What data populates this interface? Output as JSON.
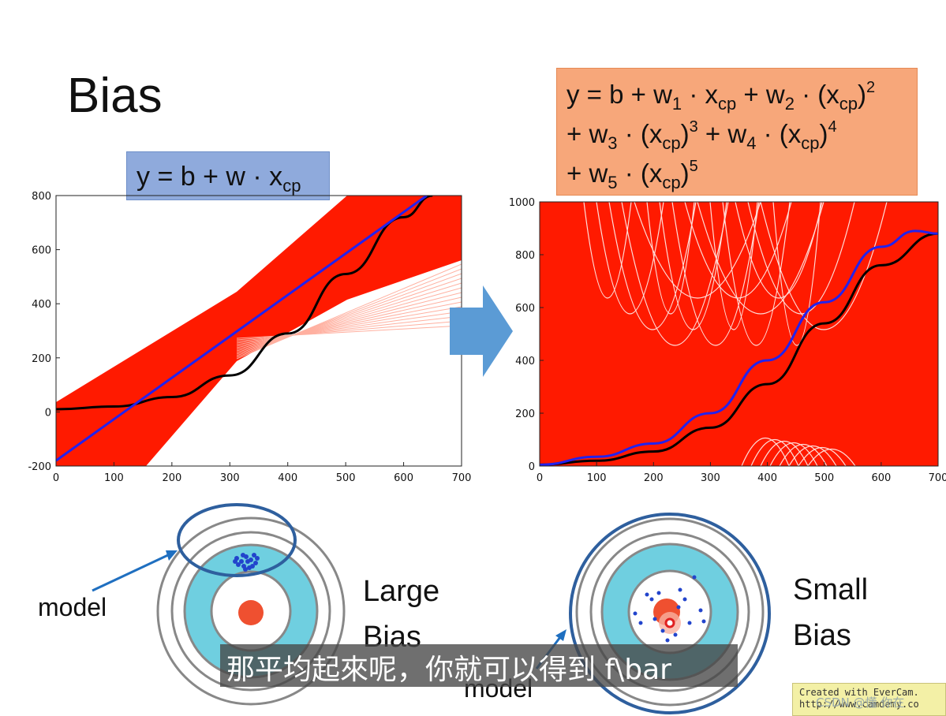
{
  "slide": {
    "title": "Bias"
  },
  "formula_left": {
    "prefix": "y = b + w · x",
    "sub": "cp"
  },
  "formula_right": {
    "line1": [
      "y = b + w",
      "1",
      " · x",
      "cp",
      " + w",
      "2",
      " · (x",
      "cp",
      ")",
      "2"
    ],
    "line2": [
      "+ w",
      "3",
      " · (x",
      "cp",
      ")",
      "3",
      " + w",
      "4",
      " · (x",
      "cp",
      ")",
      "4"
    ],
    "line3": [
      "+ w",
      "5",
      " · (x",
      "cp",
      ")",
      "5"
    ]
  },
  "chart_data": [
    {
      "type": "line",
      "xlim": [
        0,
        700
      ],
      "ylim": [
        -200,
        800
      ],
      "x_ticks": [
        "0",
        "100",
        "200",
        "300",
        "400",
        "500",
        "600",
        "700"
      ],
      "y_ticks": [
        "-200",
        "0",
        "200",
        "400",
        "600",
        "800"
      ],
      "series": [
        {
          "role": "average",
          "color": "#2222ee",
          "x": [
            0,
            640
          ],
          "y": [
            -180,
            800
          ]
        },
        {
          "role": "true",
          "color": "#000000",
          "x": [
            0,
            100,
            200,
            300,
            400,
            500,
            600,
            650
          ],
          "y": [
            10,
            20,
            55,
            135,
            290,
            510,
            720,
            800
          ]
        }
      ],
      "band_color": "#ff1a00"
    },
    {
      "type": "line",
      "xlim": [
        0,
        700
      ],
      "ylim": [
        0,
        1000
      ],
      "x_ticks": [
        "0",
        "100",
        "200",
        "300",
        "400",
        "500",
        "600",
        "700"
      ],
      "y_ticks": [
        "0",
        "200",
        "400",
        "600",
        "800",
        "1000"
      ],
      "series": [
        {
          "role": "average",
          "color": "#2222ee",
          "x": [
            0,
            100,
            200,
            300,
            400,
            500,
            600,
            660,
            700
          ],
          "y": [
            5,
            35,
            85,
            200,
            400,
            620,
            830,
            890,
            880
          ]
        },
        {
          "role": "true",
          "color": "#000000",
          "x": [
            0,
            100,
            200,
            300,
            400,
            500,
            600,
            700
          ],
          "y": [
            5,
            20,
            55,
            145,
            310,
            540,
            760,
            880
          ]
        }
      ],
      "band_color": "#ff1a00"
    }
  ],
  "targets": {
    "left_label": "model",
    "left_caption_1": "Large",
    "left_caption_2": "Bias",
    "right_label": "model",
    "right_caption_1": "Small",
    "right_caption_2": "Bias"
  },
  "subtitle": "那平均起來呢，你就可以得到 f\\bar",
  "watermarks": {
    "evercam_1": "Created with EverCam.",
    "evercam_2": "http://www.camdemy.co",
    "csdn": "CSDN @懂 你在"
  }
}
